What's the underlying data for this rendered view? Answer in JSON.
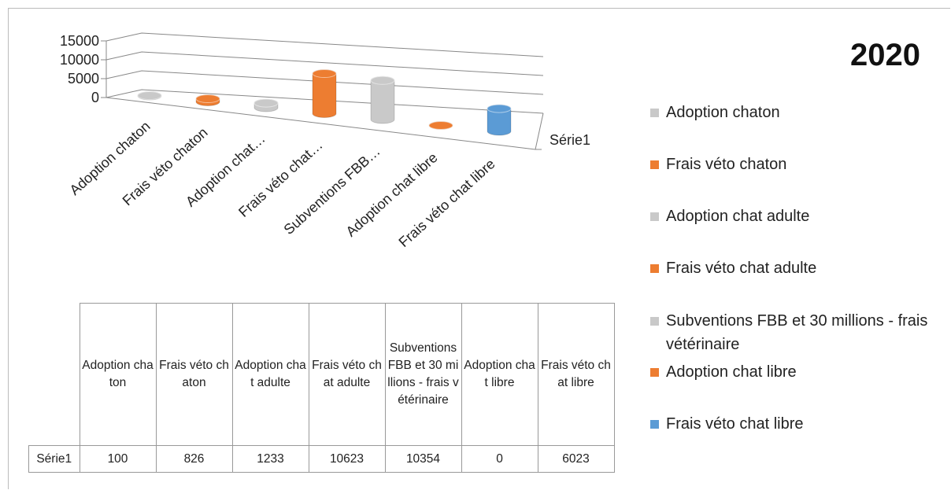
{
  "chart_data": {
    "type": "bar3d",
    "title": "2020",
    "categories": [
      "Adoption chaton",
      "Frais véto chaton",
      "Adoption chat adulte",
      "Frais véto chat adulte",
      "Subventions FBB et 30 millions - frais vétérinaire",
      "Adoption chat libre",
      "Frais véto chat libre"
    ],
    "x_tick_labels": [
      "Adoption chaton",
      "Frais véto chaton",
      "Adoption chat…",
      "Frais véto chat…",
      "Subventions FBB…",
      "Adoption chat libre",
      "Frais véto chat libre"
    ],
    "series": [
      {
        "name": "Série1",
        "values": [
          100,
          826,
          1233,
          10623,
          10354,
          0,
          6023
        ],
        "colors": [
          "#c9c9c9",
          "#ed7d31",
          "#c9c9c9",
          "#ed7d31",
          "#c9c9c9",
          "#ed7d31",
          "#5b9bd5"
        ]
      }
    ],
    "ylim": [
      0,
      15000
    ],
    "yticks": [
      0,
      5000,
      10000,
      15000
    ],
    "grid": true,
    "legend": "right",
    "data_table": true
  }
}
